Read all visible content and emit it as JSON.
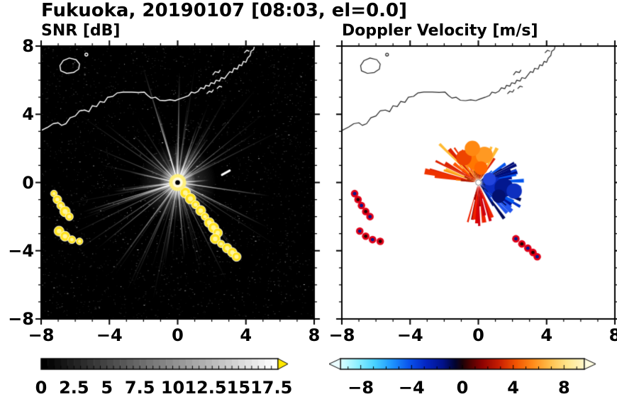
{
  "title": "Fukuoka, 20190107 [08:03, el=0.0]",
  "panels": {
    "snr": {
      "subtitle": "SNR [dB]"
    },
    "doppler": {
      "subtitle": "Doppler Velocity [m/s]"
    }
  },
  "axis": {
    "x_tick_labels": [
      "−8",
      "−4",
      "0",
      "4",
      "8"
    ],
    "x_tick_values": [
      -8,
      -4,
      0,
      4,
      8
    ],
    "y_tick_labels": [
      "8",
      "4",
      "0",
      "−4",
      "−8"
    ],
    "y_tick_values": [
      8,
      4,
      0,
      -4,
      -8
    ],
    "minor_step": 1
  },
  "coastline": {
    "main": [
      [
        -8.0,
        3.05
      ],
      [
        -7.6,
        3.25
      ],
      [
        -7.3,
        3.45
      ],
      [
        -7.0,
        3.5
      ],
      [
        -6.8,
        3.35
      ],
      [
        -6.55,
        3.45
      ],
      [
        -6.3,
        3.8
      ],
      [
        -6.0,
        3.9
      ],
      [
        -5.75,
        4.2
      ],
      [
        -5.45,
        4.25
      ],
      [
        -5.2,
        4.15
      ],
      [
        -5.0,
        4.5
      ],
      [
        -4.75,
        4.45
      ],
      [
        -4.55,
        4.75
      ],
      [
        -4.3,
        4.7
      ],
      [
        -4.1,
        5.0
      ],
      [
        -3.8,
        5.05
      ],
      [
        -3.55,
        5.25
      ],
      [
        -3.2,
        5.3
      ],
      [
        -2.7,
        5.3
      ],
      [
        -2.3,
        5.28
      ],
      [
        -1.95,
        5.3
      ],
      [
        -1.75,
        5.1
      ],
      [
        -1.55,
        4.95
      ],
      [
        -1.3,
        5.0
      ],
      [
        -1.05,
        4.82
      ],
      [
        -0.75,
        4.8
      ],
      [
        -0.45,
        4.85
      ],
      [
        -0.15,
        4.8
      ],
      [
        0.1,
        4.9
      ],
      [
        0.4,
        5.0
      ],
      [
        0.65,
        5.1
      ],
      [
        0.8,
        5.3
      ],
      [
        1.0,
        5.25
      ],
      [
        1.2,
        5.35
      ],
      [
        1.35,
        5.55
      ],
      [
        1.55,
        5.5
      ],
      [
        1.65,
        5.7
      ],
      [
        1.85,
        5.65
      ],
      [
        1.95,
        5.85
      ],
      [
        2.15,
        5.8
      ],
      [
        2.25,
        6.0
      ],
      [
        2.45,
        5.95
      ],
      [
        2.55,
        6.15
      ],
      [
        2.75,
        6.1
      ],
      [
        2.9,
        6.3
      ],
      [
        3.05,
        6.5
      ],
      [
        3.2,
        6.45
      ],
      [
        3.3,
        6.7
      ],
      [
        3.5,
        6.65
      ],
      [
        3.6,
        6.9
      ],
      [
        3.75,
        6.85
      ],
      [
        3.85,
        7.1
      ],
      [
        4.0,
        7.05
      ],
      [
        4.1,
        7.3
      ],
      [
        4.25,
        7.45
      ],
      [
        4.3,
        7.7
      ],
      [
        4.45,
        7.8
      ],
      [
        4.5,
        8.0
      ]
    ],
    "island": [
      [
        -6.85,
        6.55
      ],
      [
        -6.5,
        6.4
      ],
      [
        -6.1,
        6.45
      ],
      [
        -5.8,
        6.65
      ],
      [
        -5.75,
        6.95
      ],
      [
        -5.95,
        7.2
      ],
      [
        -6.35,
        7.3
      ],
      [
        -6.7,
        7.15
      ],
      [
        -6.9,
        6.85
      ]
    ],
    "islet": [
      -5.35,
      7.5
    ],
    "segments": [
      [
        [
          1.7,
          5.2
        ],
        [
          1.85,
          5.35
        ],
        [
          2.0,
          5.3
        ],
        [
          2.1,
          5.45
        ]
      ],
      [
        [
          2.3,
          5.5
        ],
        [
          2.45,
          5.65
        ],
        [
          2.6,
          5.6
        ]
      ],
      [
        [
          2.05,
          6.3
        ],
        [
          2.2,
          6.5
        ],
        [
          2.4,
          6.45
        ],
        [
          2.5,
          6.6
        ]
      ],
      [
        [
          3.9,
          7.6
        ],
        [
          4.05,
          7.75
        ],
        [
          4.2,
          7.7
        ]
      ]
    ]
  },
  "chart_data": [
    {
      "type": "heatmap",
      "name": "snr",
      "title": "SNR [dB]",
      "xlim": [
        -8,
        8
      ],
      "ylim": [
        -8,
        8
      ],
      "x_ticks": [
        -8,
        -4,
        0,
        4,
        8
      ],
      "y_ticks": [
        -8,
        -4,
        0,
        4,
        8
      ],
      "background": "#000000",
      "radar_center": [
        0,
        0
      ],
      "colorbar": {
        "min": 0,
        "max": 18,
        "tick_values": [
          0,
          2.5,
          5,
          7.5,
          10,
          12.5,
          15,
          17.5
        ],
        "tick_labels": [
          "0",
          "2.5",
          "5",
          "7.5",
          "10",
          "12.5",
          "15",
          "17.5"
        ],
        "style": "grayscale",
        "segment_count": 36,
        "over_arrow_color": "#ffe800"
      },
      "noise": {
        "seed": 3,
        "count": 2600
      },
      "streaks": {
        "seed": 7,
        "count": 90,
        "len_min": 1.5,
        "len_max": 7.2,
        "bright_count": 14
      },
      "echo_color": "#ffe31e",
      "echo_chains": [
        {
          "name": "main-arc",
          "r": 0.27,
          "points": [
            [
              0.45,
              -0.6
            ],
            [
              0.75,
              -0.95
            ],
            [
              1.05,
              -1.3
            ],
            [
              1.35,
              -1.65
            ],
            [
              1.6,
              -2.0
            ],
            [
              1.85,
              -2.35
            ],
            [
              2.1,
              -2.65
            ],
            [
              2.35,
              -2.95
            ]
          ]
        },
        {
          "name": "lower-right",
          "r": 0.24,
          "points": [
            [
              2.2,
              -3.3
            ],
            [
              2.55,
              -3.6
            ],
            [
              2.9,
              -3.85
            ],
            [
              3.2,
              -4.1
            ],
            [
              3.45,
              -4.35
            ]
          ]
        },
        {
          "name": "left-upper",
          "r": 0.25,
          "points": [
            [
              -7.25,
              -0.65
            ],
            [
              -7.05,
              -1.0
            ],
            [
              -6.85,
              -1.35
            ],
            [
              -6.6,
              -1.7
            ],
            [
              -6.35,
              -2.0
            ]
          ]
        },
        {
          "name": "left-lower",
          "r": 0.25,
          "points": [
            [
              -6.95,
              -2.85
            ],
            [
              -6.6,
              -3.15
            ],
            [
              -6.2,
              -3.35
            ],
            [
              -5.75,
              -3.45
            ]
          ]
        }
      ],
      "white_dash": [
        [
          2.6,
          0.45
        ],
        [
          3.05,
          0.7
        ]
      ]
    },
    {
      "type": "heatmap",
      "name": "doppler",
      "title": "Doppler Velocity [m/s]",
      "xlim": [
        -8,
        8
      ],
      "ylim": [
        -8,
        8
      ],
      "x_ticks": [
        -8,
        -4,
        0,
        4,
        8
      ],
      "y_ticks": [
        -8,
        -4,
        0,
        4,
        8
      ],
      "background": "#ffffff",
      "radar_center": [
        0,
        0
      ],
      "colorbar": {
        "min": -9.6,
        "max": 9.6,
        "tick_values": [
          -8,
          -4,
          0,
          4,
          8
        ],
        "tick_labels": [
          "−8",
          "−4",
          "0",
          "4",
          "8"
        ],
        "style": "doppler",
        "under_arrow_color": "#eafcff",
        "over_arrow_color": "#fffce0",
        "gradient": [
          [
            0,
            "#dcffff"
          ],
          [
            0.07,
            "#8ef0ff"
          ],
          [
            0.14,
            "#49d2ff"
          ],
          [
            0.21,
            "#1f97ff"
          ],
          [
            0.28,
            "#0a55ee"
          ],
          [
            0.35,
            "#0426c4"
          ],
          [
            0.42,
            "#02128a"
          ],
          [
            0.47,
            "#020430"
          ],
          [
            0.5,
            "#1c0208"
          ],
          [
            0.53,
            "#4a0202"
          ],
          [
            0.58,
            "#8c0202"
          ],
          [
            0.65,
            "#c81e02"
          ],
          [
            0.72,
            "#f25502"
          ],
          [
            0.79,
            "#ff8c1a"
          ],
          [
            0.86,
            "#ffc04d"
          ],
          [
            0.93,
            "#ffe68c"
          ],
          [
            1,
            "#fff7c8"
          ]
        ]
      },
      "fans": [
        {
          "name": "outbound-orange",
          "seed": 11,
          "angle_start": 55,
          "angle_end": 175,
          "count": 46,
          "len_min": 0.7,
          "len_max": 2.6,
          "palette": [
            "#ff9911",
            "#ff7700",
            "#ff5500",
            "#ee3300",
            "#ffbb33",
            "#dd2200",
            "#ff8800"
          ]
        },
        {
          "name": "inbound-blue",
          "seed": 21,
          "angle_start": -58,
          "angle_end": 44,
          "count": 50,
          "len_min": 0.6,
          "len_max": 2.9,
          "palette": [
            "#0033cc",
            "#001199",
            "#0055ee",
            "#000d77",
            "#2255ee",
            "#000a55",
            "#1144dd"
          ]
        },
        {
          "name": "south-red",
          "seed": 31,
          "angle_start": 253,
          "angle_end": 292,
          "count": 12,
          "len_min": 0.9,
          "len_max": 2.7,
          "palette": [
            "#cc0011",
            "#ee2200",
            "#990000",
            "#dd0000"
          ]
        },
        {
          "name": "orange-dark-core",
          "seed": 41,
          "angle_start": 55,
          "angle_end": 175,
          "count": 18,
          "len_min": 0.3,
          "len_max": 0.9,
          "palette": [
            "#aa1100",
            "#cc3300",
            "#882200"
          ]
        },
        {
          "name": "blue-dark-core",
          "seed": 51,
          "angle_start": -58,
          "angle_end": 44,
          "count": 20,
          "len_min": 0.3,
          "len_max": 0.8,
          "palette": [
            "#000d66",
            "#001a99",
            "#000433"
          ]
        }
      ],
      "core_blobs": [
        [
          -0.2,
          1.3,
          0.55,
          "#ff7700"
        ],
        [
          0.35,
          1.6,
          0.5,
          "#ff9922"
        ],
        [
          -0.85,
          1.45,
          0.45,
          "#ee4400"
        ],
        [
          -0.35,
          2.0,
          0.45,
          "#ff8811"
        ],
        [
          0.15,
          0.85,
          0.4,
          "#ff6600"
        ],
        [
          0.9,
          -0.15,
          0.5,
          "#0b2cc0"
        ],
        [
          1.5,
          -0.3,
          0.55,
          "#03188f"
        ],
        [
          2.1,
          -0.5,
          0.45,
          "#0d2fbf"
        ],
        [
          0.65,
          0.2,
          0.38,
          "#2244dd"
        ],
        [
          1.2,
          -0.8,
          0.4,
          "#021070"
        ]
      ],
      "patch_chains": [
        {
          "name": "left-upper",
          "points": [
            [
              -7.25,
              -0.65
            ],
            [
              -7.05,
              -1.0
            ],
            [
              -6.85,
              -1.35
            ],
            [
              -6.6,
              -1.7
            ],
            [
              -6.35,
              -2.0
            ]
          ]
        },
        {
          "name": "left-lower",
          "points": [
            [
              -6.95,
              -2.85
            ],
            [
              -6.6,
              -3.15
            ],
            [
              -6.2,
              -3.35
            ],
            [
              -5.75,
              -3.45
            ]
          ]
        },
        {
          "name": "lower-right",
          "points": [
            [
              2.2,
              -3.3
            ],
            [
              2.55,
              -3.6
            ],
            [
              2.9,
              -3.85
            ],
            [
              3.2,
              -4.1
            ],
            [
              3.45,
              -4.35
            ]
          ]
        }
      ],
      "patch_outer_color": "#e00018",
      "patch_inner_colors": [
        "#001a8c",
        "#2a0004"
      ]
    }
  ]
}
